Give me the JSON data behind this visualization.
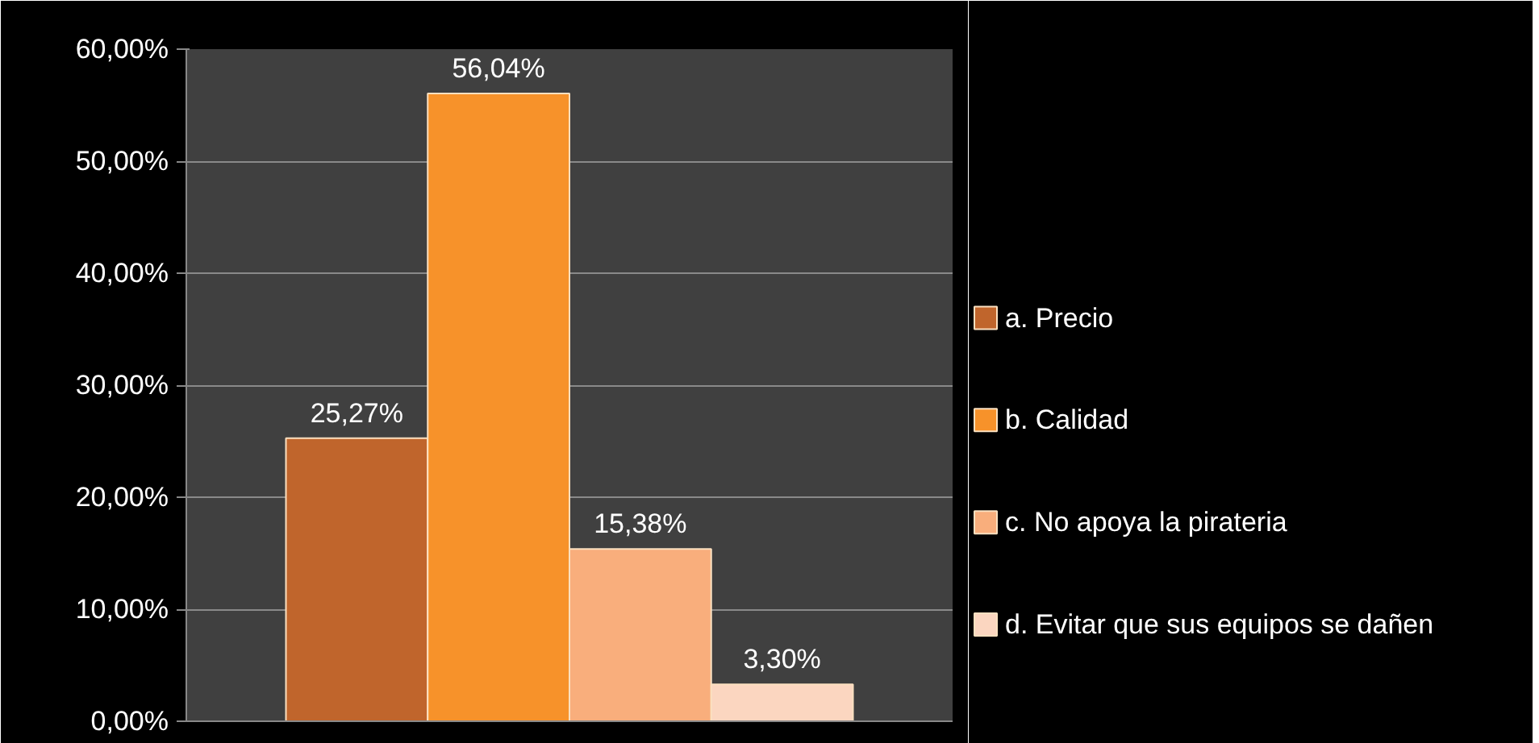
{
  "chart_data": {
    "type": "bar",
    "categories": [
      null
    ],
    "series": [
      {
        "name": "a. Precio",
        "color": "#c0652c",
        "values": [
          25.27
        ],
        "value_labels": [
          "25,27%"
        ]
      },
      {
        "name": "b. Calidad",
        "color": "#f7922a",
        "values": [
          56.04
        ],
        "value_labels": [
          "56,04%"
        ]
      },
      {
        "name": "c. No apoya la pirateria",
        "color": "#f9ae7c",
        "values": [
          15.38
        ],
        "value_labels": [
          "15,38%"
        ]
      },
      {
        "name": "d. Evitar que sus equipos se dañen",
        "color": "#fbd6c0",
        "values": [
          3.3
        ],
        "value_labels": [
          "3,30%"
        ]
      }
    ],
    "ylim": [
      0,
      60
    ],
    "yticks": [
      {
        "value": 0,
        "label": "0,00%"
      },
      {
        "value": 10,
        "label": "10,00%"
      },
      {
        "value": 20,
        "label": "20,00%"
      },
      {
        "value": 30,
        "label": "30,00%"
      },
      {
        "value": 40,
        "label": "40,00%"
      },
      {
        "value": 50,
        "label": "50,00%"
      },
      {
        "value": 60,
        "label": "60,00%"
      }
    ],
    "grid": "y",
    "legend": "right"
  }
}
